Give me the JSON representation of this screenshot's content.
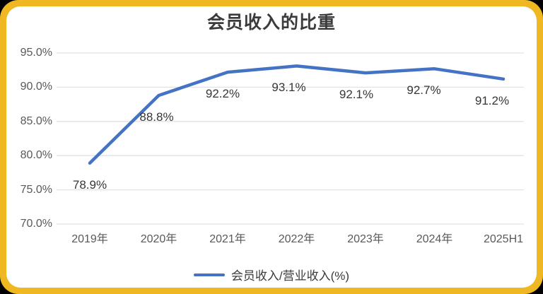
{
  "frame": {
    "border_color": "#EFB822",
    "card_background": "#FFFFFF",
    "page_background": "#000000"
  },
  "title": "会员收入的比重",
  "legend": {
    "label": "会员收入/营业收入(%)"
  },
  "chart_data": {
    "type": "line",
    "title": "会员收入的比重",
    "categories": [
      "2019年",
      "2020年",
      "2021年",
      "2022年",
      "2023年",
      "2024年",
      "2025H1"
    ],
    "series": [
      {
        "name": "会员收入/营业收入(%)",
        "values": [
          78.9,
          88.8,
          92.2,
          93.1,
          92.1,
          92.7,
          91.2
        ]
      }
    ],
    "data_labels": [
      "78.9%",
      "88.8%",
      "92.2%",
      "93.1%",
      "92.1%",
      "92.7%",
      "91.2%"
    ],
    "y_ticks": [
      {
        "value": 95,
        "label": "95.0%"
      },
      {
        "value": 90,
        "label": "90.0%"
      },
      {
        "value": 85,
        "label": "85.0%"
      },
      {
        "value": 80,
        "label": "80.0%"
      },
      {
        "value": 75,
        "label": "75.0%"
      },
      {
        "value": 70,
        "label": "70.0%"
      }
    ],
    "ylim": [
      70,
      95
    ],
    "xlabel": "",
    "ylabel": "",
    "grid": true,
    "legend_position": "bottom",
    "line_color": "#4472C4",
    "gridline_color": "#E2E2E2",
    "axis_text_color": "#595959",
    "data_label_color": "#363636"
  }
}
